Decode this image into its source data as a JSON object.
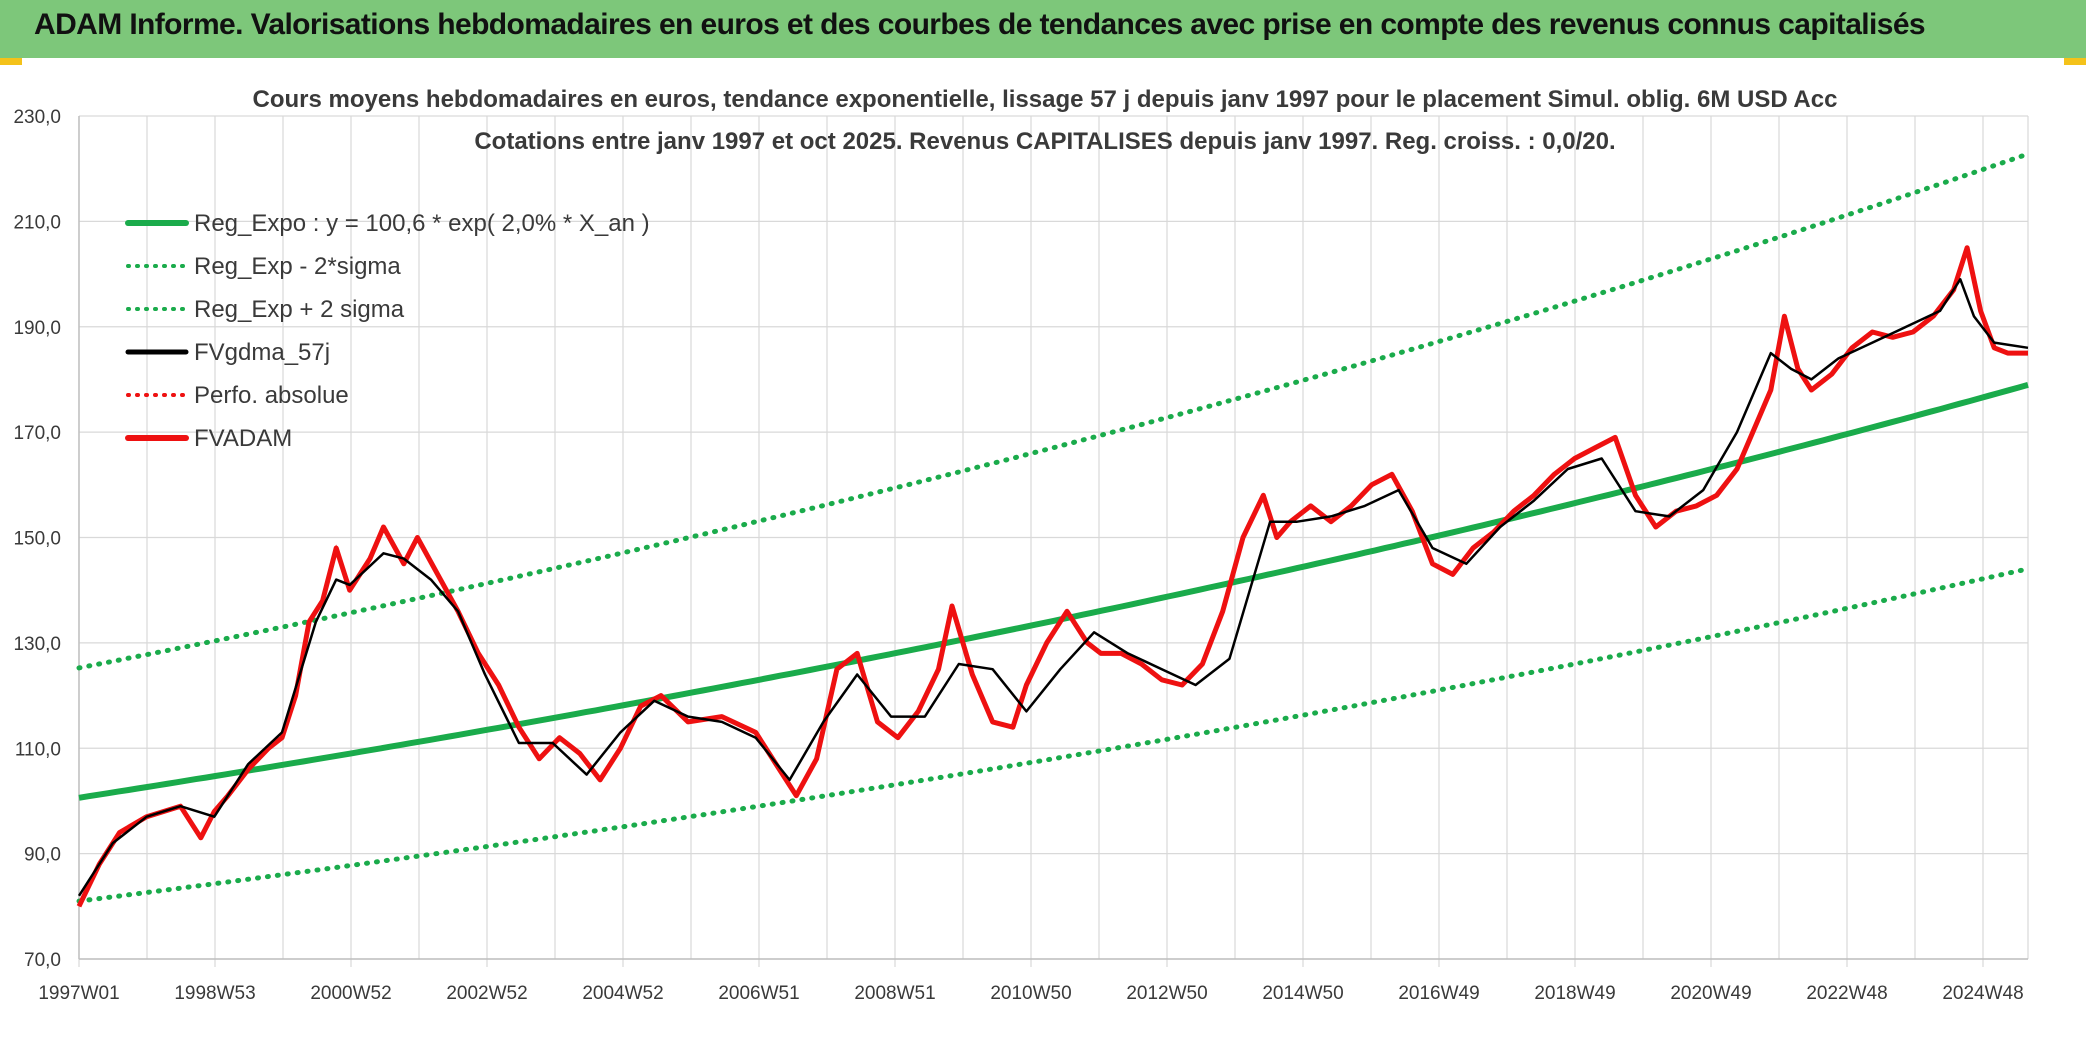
{
  "banner": {
    "title": "ADAM Informe. Valorisations hebdomadaires en euros et des courbes de tendances avec prise en compte des revenus connus capitalisés"
  },
  "colors": {
    "banner_bg": "#7dc77a",
    "corner_accent": "#f4c21a",
    "trend_green": "#1aab4b",
    "price_red": "#ee1111",
    "smooth_black": "#000000",
    "grid": "#d9d9d9",
    "text": "#3a3a3a"
  },
  "chart_data": {
    "type": "line",
    "title": "Cours moyens hebdomadaires en euros, tendance exponentielle, lissage 57 j depuis janv 1997 pour le placement Simul. oblig. 6M USD Acc",
    "subtitle": "Cotations entre janv 1997 et oct 2025. Revenus CAPITALISES depuis janv 1997. Reg. croiss. : 0,0/20.",
    "xlabel": "",
    "ylabel": "",
    "x_range": [
      1997.0,
      2025.8
    ],
    "ylim": [
      70,
      230
    ],
    "y_ticks": [
      "70,0",
      "90,0",
      "110,0",
      "130,0",
      "150,0",
      "170,0",
      "190,0",
      "210,0",
      "230,0"
    ],
    "x_tick_labels": [
      "1997W01",
      "1998W53",
      "2000W52",
      "2002W52",
      "2004W52",
      "2006W51",
      "2008W51",
      "2010W50",
      "2012W50",
      "2014W50",
      "2016W49",
      "2018W49",
      "2020W49",
      "2022W48",
      "2024W48"
    ],
    "grid": true,
    "legend_position": "top-left",
    "legend": [
      {
        "name": "Reg_Expo : y = 100,6 * exp( 2,0% *  X_an )",
        "style": "solid-thick",
        "color": "#1aab4b"
      },
      {
        "name": "Reg_Exp - 2*sigma",
        "style": "dotted",
        "color": "#1aab4b"
      },
      {
        "name": "Reg_Exp + 2 sigma",
        "style": "dotted",
        "color": "#1aab4b"
      },
      {
        "name": "FVgdma_57j",
        "style": "solid",
        "color": "#000000"
      },
      {
        "name": "Perfo. absolue",
        "style": "dotted",
        "color": "#ee1111"
      },
      {
        "name": "FVADAM",
        "style": "solid-thick",
        "color": "#ee1111"
      }
    ],
    "trend": {
      "a": 100.6,
      "rate": 0.02,
      "x0": 1997.0,
      "lower_factor": 0.805,
      "upper_factor": 1.245
    },
    "series": [
      {
        "name": "FVADAM",
        "x": [
          1997.0,
          1997.3,
          1997.6,
          1998.0,
          1998.5,
          1998.8,
          1999.0,
          1999.2,
          1999.5,
          1999.8,
          2000.0,
          2000.2,
          2000.4,
          2000.6,
          2000.8,
          2001.0,
          2001.3,
          2001.5,
          2001.8,
          2002.0,
          2002.3,
          2002.6,
          2002.9,
          2003.2,
          2003.5,
          2003.8,
          2004.1,
          2004.4,
          2004.7,
          2005.0,
          2005.3,
          2005.6,
          2006.0,
          2006.5,
          2007.0,
          2007.3,
          2007.6,
          2007.9,
          2008.2,
          2008.5,
          2008.8,
          2009.1,
          2009.4,
          2009.7,
          2009.9,
          2010.2,
          2010.5,
          2010.8,
          2011.0,
          2011.3,
          2011.6,
          2011.9,
          2012.1,
          2012.4,
          2012.7,
          2013.0,
          2013.3,
          2013.6,
          2013.9,
          2014.2,
          2014.5,
          2014.7,
          2014.9,
          2015.2,
          2015.5,
          2015.8,
          2016.1,
          2016.4,
          2016.7,
          2017.0,
          2017.3,
          2017.6,
          2017.9,
          2018.2,
          2018.5,
          2018.8,
          2019.1,
          2019.4,
          2019.7,
          2020.0,
          2020.3,
          2020.6,
          2020.9,
          2021.2,
          2021.5,
          2021.8,
          2022.0,
          2022.2,
          2022.4,
          2022.6,
          2022.9,
          2023.2,
          2023.5,
          2023.8,
          2024.1,
          2024.4,
          2024.7,
          2024.9,
          2025.1,
          2025.3,
          2025.5,
          2025.8
        ],
        "values": [
          80,
          88,
          94,
          97,
          99,
          93,
          98,
          101,
          106,
          110,
          112,
          120,
          134,
          138,
          148,
          140,
          146,
          152,
          145,
          150,
          143,
          136,
          128,
          122,
          114,
          108,
          112,
          109,
          104,
          110,
          118,
          120,
          115,
          116,
          113,
          107,
          101,
          108,
          125,
          128,
          115,
          112,
          117,
          125,
          137,
          124,
          115,
          114,
          122,
          130,
          136,
          130,
          128,
          128,
          126,
          123,
          122,
          126,
          136,
          150,
          158,
          150,
          153,
          156,
          153,
          156,
          160,
          162,
          155,
          145,
          143,
          148,
          151,
          155,
          158,
          162,
          165,
          167,
          169,
          158,
          152,
          155,
          156,
          158,
          163,
          172,
          178,
          192,
          182,
          178,
          181,
          186,
          189,
          188,
          189,
          192,
          197,
          205,
          193,
          186,
          185,
          185
        ]
      },
      {
        "name": "FVgdma_57j",
        "x": [
          1997.0,
          1997.5,
          1998.0,
          1998.5,
          1999.0,
          1999.5,
          2000.0,
          2000.5,
          2000.8,
          2001.0,
          2001.5,
          2001.8,
          2002.2,
          2002.6,
          2003.0,
          2003.5,
          2004.0,
          2004.5,
          2005.0,
          2005.5,
          2006.0,
          2006.5,
          2007.0,
          2007.5,
          2008.0,
          2008.5,
          2009.0,
          2009.5,
          2010.0,
          2010.5,
          2011.0,
          2011.5,
          2012.0,
          2012.5,
          2013.0,
          2013.5,
          2014.0,
          2014.3,
          2014.6,
          2015.0,
          2015.5,
          2016.0,
          2016.5,
          2017.0,
          2017.5,
          2018.0,
          2018.5,
          2019.0,
          2019.5,
          2020.0,
          2020.5,
          2021.0,
          2021.5,
          2022.0,
          2022.3,
          2022.6,
          2023.0,
          2023.5,
          2024.0,
          2024.5,
          2024.8,
          2025.0,
          2025.3,
          2025.8
        ],
        "values": [
          82,
          92,
          97,
          99,
          97,
          107,
          113,
          134,
          142,
          141,
          147,
          146,
          142,
          136,
          124,
          111,
          111,
          105,
          113,
          119,
          116,
          115,
          112,
          104,
          115,
          124,
          116,
          116,
          126,
          125,
          117,
          125,
          132,
          128,
          125,
          122,
          127,
          140,
          153,
          153,
          154,
          156,
          159,
          148,
          145,
          152,
          157,
          163,
          165,
          155,
          154,
          159,
          170,
          185,
          182,
          180,
          184,
          187,
          190,
          193,
          199,
          192,
          187,
          186
        ]
      }
    ]
  }
}
